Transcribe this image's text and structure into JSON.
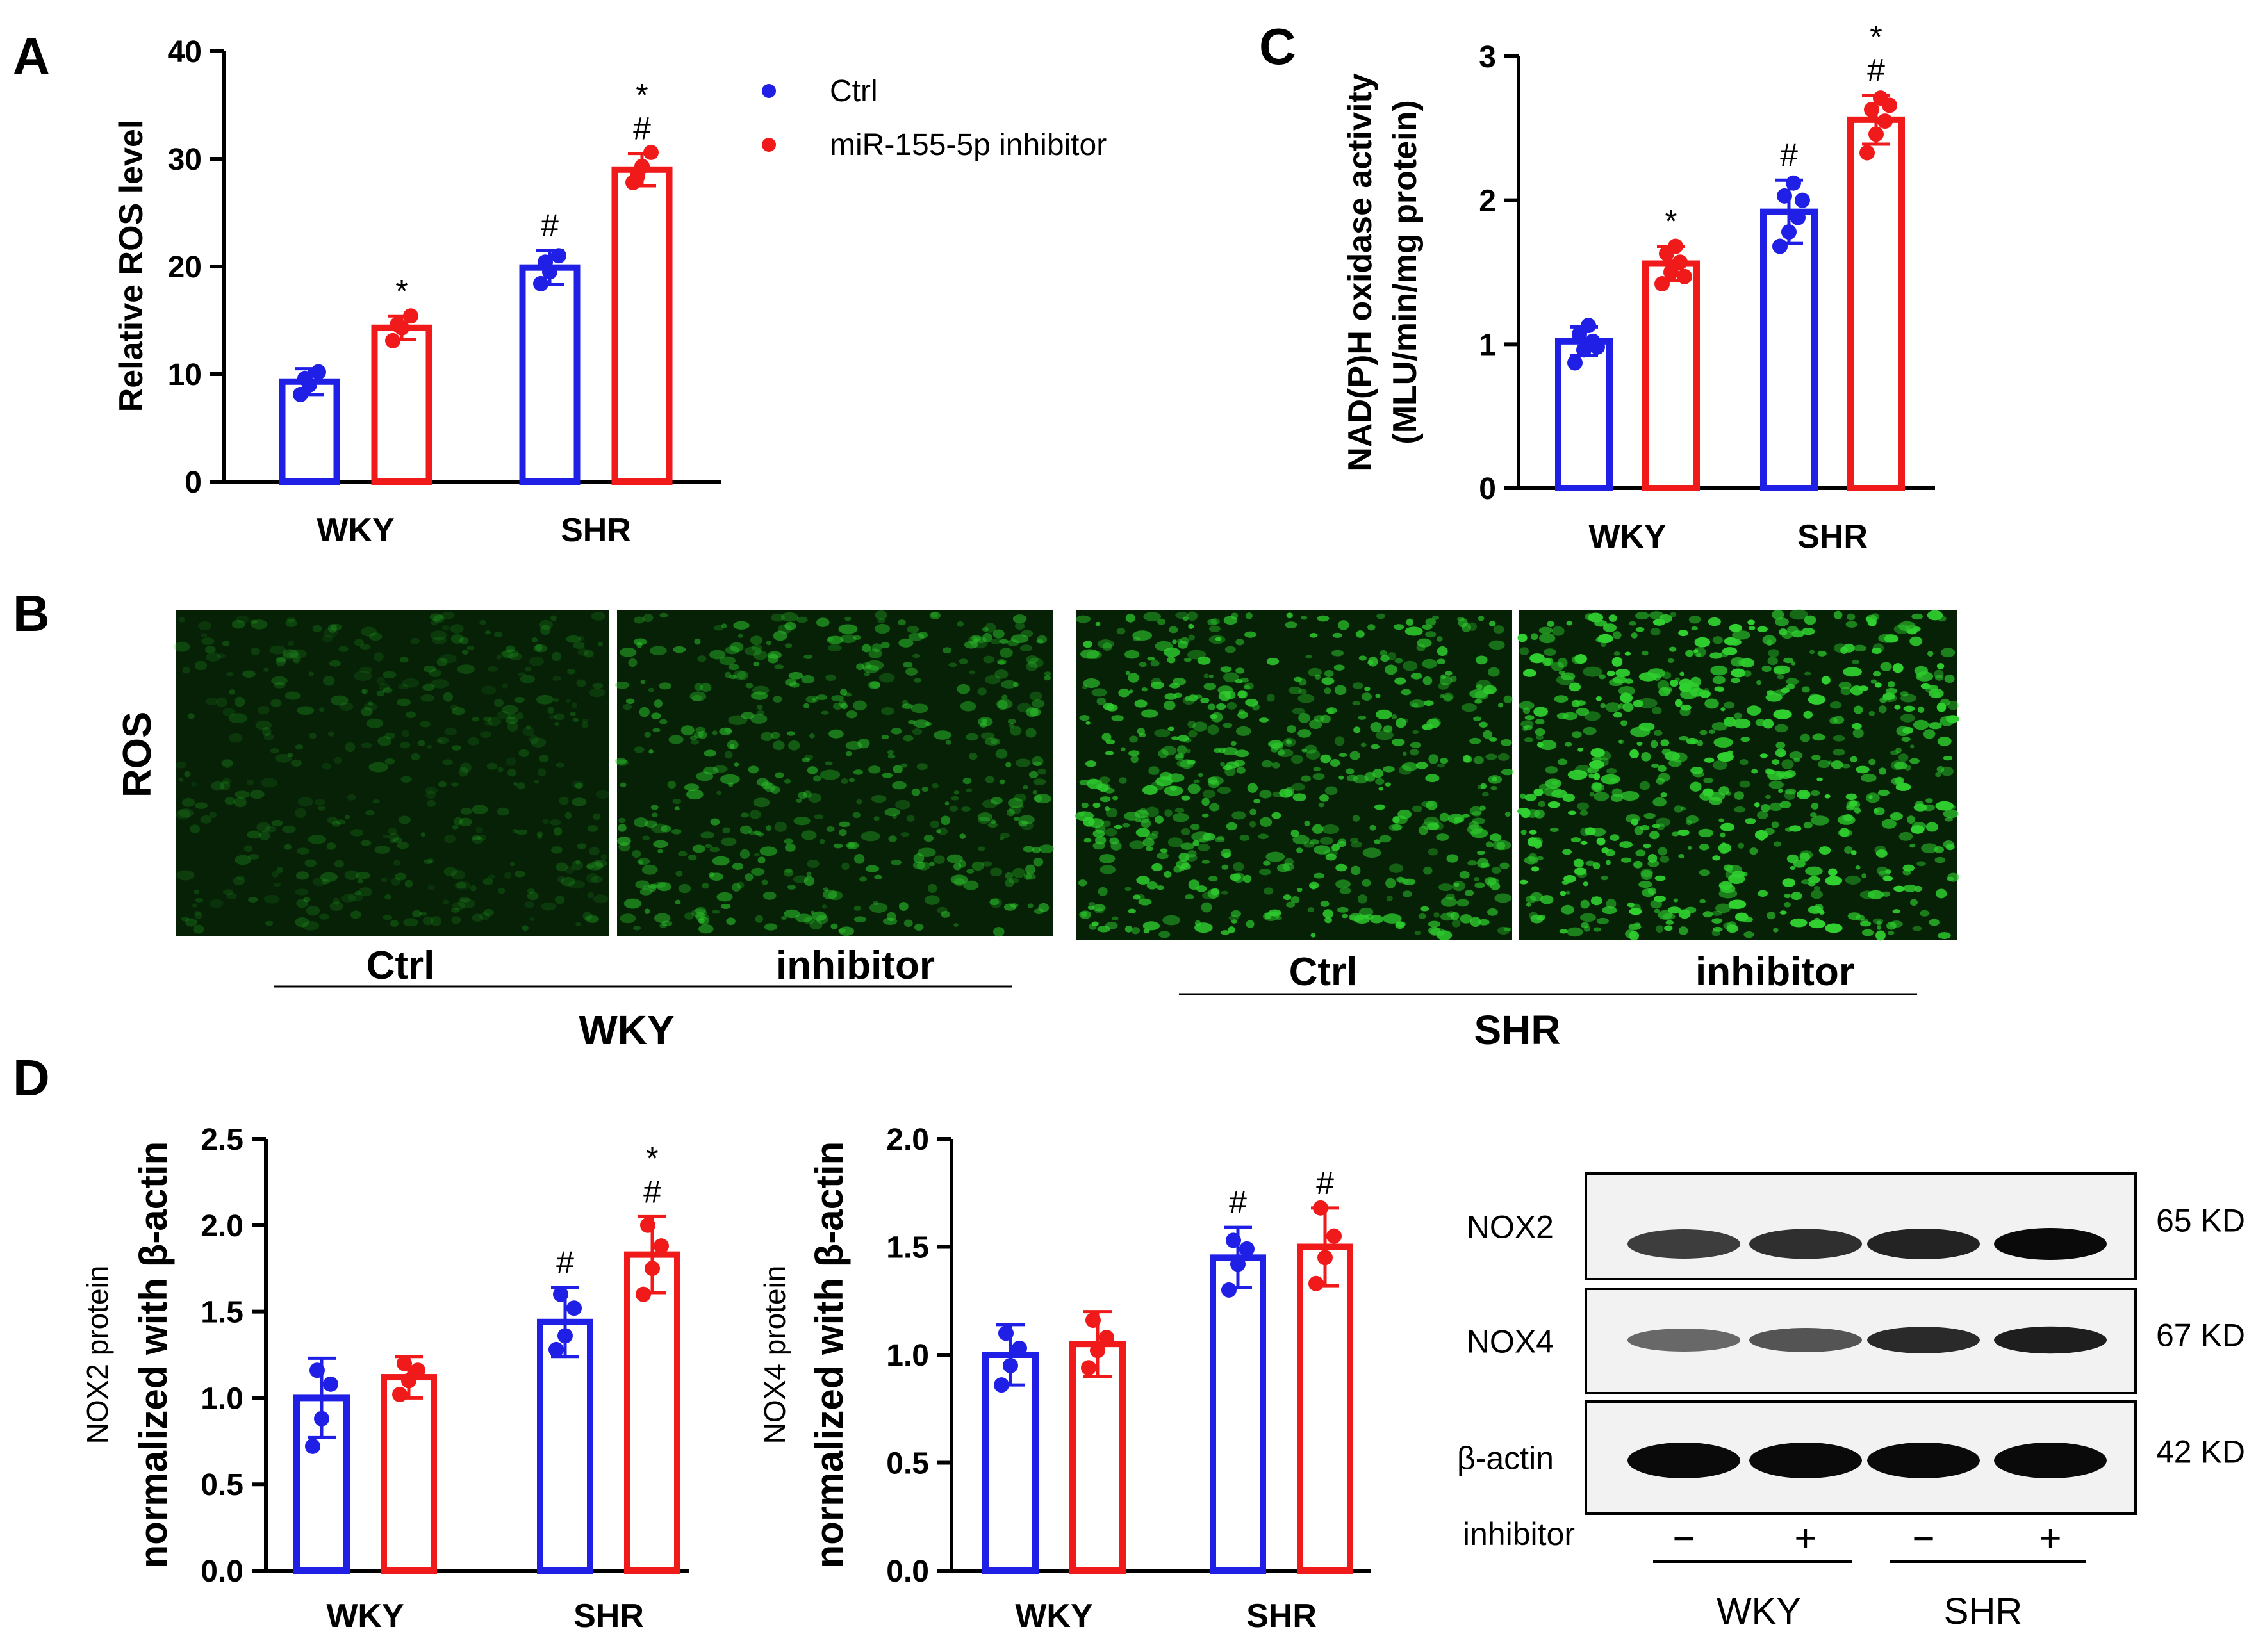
{
  "panel_letters": [
    "A",
    "B",
    "C",
    "D"
  ],
  "legend": {
    "items": [
      {
        "label": "Ctrl",
        "color": "#1f1fe6"
      },
      {
        "label": "miR-155-5p inhibitor",
        "color": "#f01a1a"
      }
    ]
  },
  "colors": {
    "ctrl": "#1f1fe6",
    "inhibitor": "#f01a1a",
    "fluorescence": "#2fd02f"
  },
  "chart_data": [
    {
      "id": "A",
      "type": "bar",
      "title": "",
      "ylabel": "Relative ROS level",
      "ylabel2": "",
      "ylim": [
        0,
        40
      ],
      "yticks": [
        "0",
        "10",
        "20",
        "30",
        "40"
      ],
      "categories": [
        "WKY",
        "SHR"
      ],
      "series": [
        {
          "name": "Ctrl",
          "values": [
            9.3,
            19.9
          ],
          "sd": [
            1.2,
            1.6
          ],
          "points": [
            [
              8.1,
              9.0,
              10.2,
              9.6
            ],
            [
              18.4,
              19.5,
              21.0,
              20.4
            ]
          ]
        },
        {
          "name": "miR-155-5p inhibitor",
          "values": [
            14.3,
            29.0
          ],
          "sd": [
            1.1,
            1.5
          ],
          "points": [
            [
              13.1,
              14.3,
              15.4,
              14.6
            ],
            [
              27.8,
              29.3,
              30.6,
              28.4
            ]
          ]
        }
      ],
      "annotations": [
        [
          [
            ""
          ],
          [
            "*"
          ]
        ],
        [
          [
            "#"
          ],
          [
            "#",
            "*"
          ]
        ]
      ]
    },
    {
      "id": "C",
      "type": "bar",
      "title": "",
      "ylabel": "NAD(P)H oxidase activity",
      "ylabel2": "(MLU/min/mg protein)",
      "ylim": [
        0,
        3
      ],
      "yticks": [
        "0",
        "1",
        "2",
        "3"
      ],
      "categories": [
        "WKY",
        "SHR"
      ],
      "series": [
        {
          "name": "Ctrl",
          "values": [
            1.02,
            1.92
          ],
          "sd": [
            0.1,
            0.22
          ],
          "points": [
            [
              0.87,
              0.96,
              1.02,
              1.07,
              1.13,
              0.98
            ],
            [
              1.68,
              1.78,
              1.88,
              2.03,
              2.12,
              2.0
            ]
          ]
        },
        {
          "name": "miR-155-5p inhibitor",
          "values": [
            1.56,
            2.56
          ],
          "sd": [
            0.12,
            0.17
          ],
          "points": [
            [
              1.42,
              1.5,
              1.57,
              1.63,
              1.68,
              1.47
            ],
            [
              2.33,
              2.46,
              2.55,
              2.63,
              2.71,
              2.66
            ]
          ]
        }
      ],
      "annotations": [
        [
          [
            ""
          ],
          [
            "*"
          ]
        ],
        [
          [
            "#"
          ],
          [
            "#",
            "*"
          ]
        ]
      ]
    },
    {
      "id": "D1",
      "type": "bar",
      "title": "",
      "ylabel": "NOX2 protein",
      "ylabel2": "normalized with β-actin",
      "ylim": [
        0,
        2.5
      ],
      "yticks": [
        "0.0",
        "0.5",
        "1.0",
        "1.5",
        "2.0",
        "2.5"
      ],
      "categories": [
        "WKY",
        "SHR"
      ],
      "series": [
        {
          "name": "Ctrl",
          "values": [
            1.0,
            1.44
          ],
          "sd": [
            0.23,
            0.2
          ],
          "points": [
            [
              0.72,
              0.88,
              1.08,
              1.16
            ],
            [
              1.28,
              1.36,
              1.52,
              1.6
            ]
          ]
        },
        {
          "name": "miR-155-5p inhibitor",
          "values": [
            1.12,
            1.83
          ],
          "sd": [
            0.12,
            0.22
          ],
          "points": [
            [
              1.02,
              1.1,
              1.16,
              1.2
            ],
            [
              1.6,
              1.75,
              1.88,
              2.0
            ]
          ]
        }
      ],
      "annotations": [
        [
          [
            ""
          ],
          [
            ""
          ]
        ],
        [
          [
            "#"
          ],
          [
            "#",
            "*"
          ]
        ]
      ]
    },
    {
      "id": "D2",
      "type": "bar",
      "title": "",
      "ylabel": "NOX4 protein",
      "ylabel2": "normalized with β-actin",
      "ylim": [
        0,
        2.0
      ],
      "yticks": [
        "0.0",
        "0.5",
        "1.0",
        "1.5",
        "2.0"
      ],
      "categories": [
        "WKY",
        "SHR"
      ],
      "series": [
        {
          "name": "Ctrl",
          "values": [
            1.0,
            1.45
          ],
          "sd": [
            0.14,
            0.14
          ],
          "points": [
            [
              0.86,
              0.95,
              1.03,
              1.1
            ],
            [
              1.3,
              1.42,
              1.49,
              1.53
            ]
          ]
        },
        {
          "name": "miR-155-5p inhibitor",
          "values": [
            1.05,
            1.5
          ],
          "sd": [
            0.15,
            0.18
          ],
          "points": [
            [
              0.94,
              1.02,
              1.08,
              1.16
            ],
            [
              1.33,
              1.45,
              1.55,
              1.68
            ]
          ]
        }
      ],
      "annotations": [
        [
          [
            ""
          ],
          [
            ""
          ]
        ],
        [
          [
            "#"
          ],
          [
            "#"
          ]
        ]
      ]
    }
  ],
  "panel_b": {
    "row_label": "ROS",
    "images": [
      {
        "label": "Ctrl",
        "group": "WKY",
        "intensity": 0.22,
        "density": 0.35
      },
      {
        "label": "inhibitor",
        "group": "WKY",
        "intensity": 0.5,
        "density": 0.55
      },
      {
        "label": "Ctrl",
        "group": "SHR",
        "intensity": 0.75,
        "density": 0.85
      },
      {
        "label": "inhibitor",
        "group": "SHR",
        "intensity": 0.9,
        "density": 1.0
      }
    ],
    "groups": [
      "WKY",
      "SHR"
    ]
  },
  "western_blot": {
    "rows": [
      {
        "protein": "NOX2",
        "size": "65 KD",
        "intensities": [
          0.75,
          0.82,
          0.88,
          1.0
        ]
      },
      {
        "protein": "NOX4",
        "size": "67 KD",
        "intensities": [
          0.5,
          0.62,
          0.85,
          0.9
        ]
      },
      {
        "protein": "β-actin",
        "size": "42 KD",
        "intensities": [
          1.0,
          1.0,
          1.0,
          1.0
        ]
      }
    ],
    "treatment_label": "inhibitor",
    "treatment_marks": [
      "−",
      "+",
      "−",
      "+"
    ],
    "groups": [
      "WKY",
      "SHR"
    ]
  }
}
